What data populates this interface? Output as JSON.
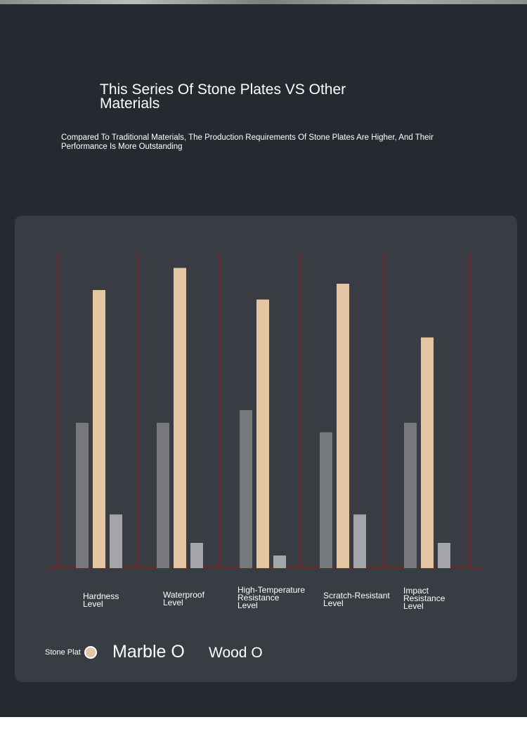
{
  "header": {
    "title": "This Series Of Stone Plates VS Other Materials",
    "subtitle": "Compared To Traditional Materials, The Production Requirements Of Stone Plates Are Higher, And Their Performance Is More Outstanding"
  },
  "legend": {
    "stone": "Stone Plat",
    "marble": "Marble O",
    "wood": "Wood O"
  },
  "colors": {
    "page_background": "#262a30",
    "card_background": "#393c42",
    "stone_plate": "#e4c6a2",
    "marble": "#76787c",
    "wood": "#a4a5a8",
    "divider": "#8b1a1e"
  },
  "chart_data": {
    "type": "bar",
    "categories": [
      "Hardness\nLevel",
      "Waterproof\nLevel",
      "High-Temperature\nResistance\nLevel",
      "Scratch-Resistant\nLevel",
      "Impact\nResistance\nLevel"
    ],
    "series": [
      {
        "name": "Marble O",
        "values": [
          46,
          46,
          50,
          43,
          46
        ]
      },
      {
        "name": "Stone Plat",
        "values": [
          88,
          95,
          85,
          90,
          73
        ]
      },
      {
        "name": "Wood O",
        "values": [
          17,
          8,
          4,
          17,
          8
        ]
      }
    ],
    "ylim": [
      0,
      100
    ],
    "grid": false,
    "legend_position": "bottom-left"
  }
}
